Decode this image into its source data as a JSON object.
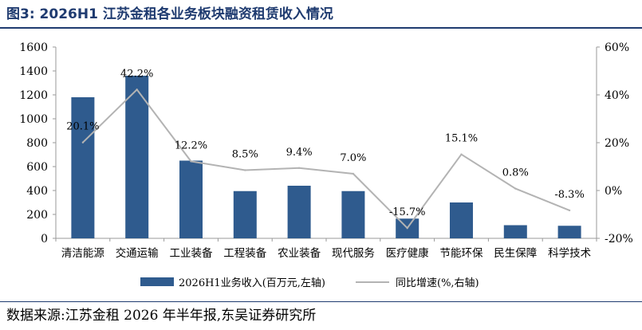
{
  "title": "图3:  2026H1 江苏金租各业务板块融资租赁收入情况",
  "source": "数据来源:江苏金租 2026 年半年报,东吴证券研究所",
  "colors": {
    "bar": "#2f5b8e",
    "line": "#b3b3b3",
    "title": "#1f3b70"
  },
  "chart_data": {
    "type": "bar+line",
    "categories": [
      "清洁能源",
      "交通运输",
      "工业装备",
      "工程装备",
      "农业装备",
      "现代服务",
      "医疗健康",
      "节能环保",
      "民生保障",
      "科学技术"
    ],
    "series": [
      {
        "name": "2026H1业务收入(百万元,左轴)",
        "type": "bar",
        "axis": "left",
        "values": [
          1180,
          1360,
          650,
          395,
          440,
          395,
          165,
          300,
          110,
          105
        ]
      },
      {
        "name": "同比增速(%,右轴)",
        "type": "line",
        "axis": "right",
        "values": [
          20.1,
          42.2,
          12.2,
          8.5,
          9.4,
          7.0,
          -15.7,
          15.1,
          0.8,
          -8.3
        ],
        "labels": [
          "20.1%",
          "42.2%",
          "12.2%",
          "8.5%",
          "9.4%",
          "7.0%",
          "-15.7%",
          "15.1%",
          "0.8%",
          "-8.3%"
        ]
      }
    ],
    "left_axis": {
      "min": 0,
      "max": 1600,
      "ticks": [
        0,
        200,
        400,
        600,
        800,
        1000,
        1200,
        1400,
        1600
      ],
      "tick_labels": [
        "0",
        "200",
        "400",
        "600",
        "800",
        "1000",
        "1200",
        "1400",
        "1600"
      ]
    },
    "right_axis": {
      "min": -20,
      "max": 60,
      "ticks": [
        -20,
        0,
        20,
        40,
        60
      ],
      "tick_labels": [
        "-20%",
        "0%",
        "20%",
        "40%",
        "60%"
      ]
    },
    "legend_position": "bottom",
    "grid": false
  }
}
